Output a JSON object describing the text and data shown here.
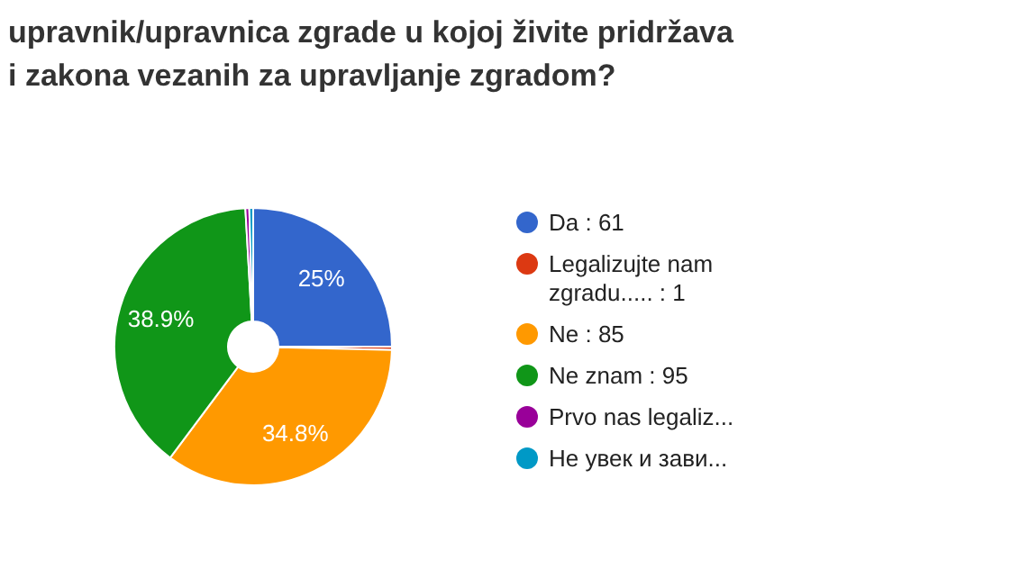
{
  "chart_data": {
    "type": "donut",
    "title": "upravnik/upravnica zgrade u kojoj živite pridržava\ni zakona vezanih za upravljanje zgradom?",
    "categories": [
      "Da : 61",
      "Legalizujte nam zgradu..... : 1",
      "Ne : 85",
      "Ne znam : 95",
      "Prvo nas legaliz...",
      "Не увек и зави..."
    ],
    "values": [
      25,
      0.4,
      34.8,
      38.9,
      0.45,
      0.45
    ],
    "colors": [
      "#3366cc",
      "#dc3912",
      "#ff9900",
      "#109618",
      "#990099",
      "#0099c6"
    ],
    "value_labels": [
      "25%",
      null,
      "34.8%",
      "38.9%",
      null,
      null
    ],
    "legend": "right"
  }
}
